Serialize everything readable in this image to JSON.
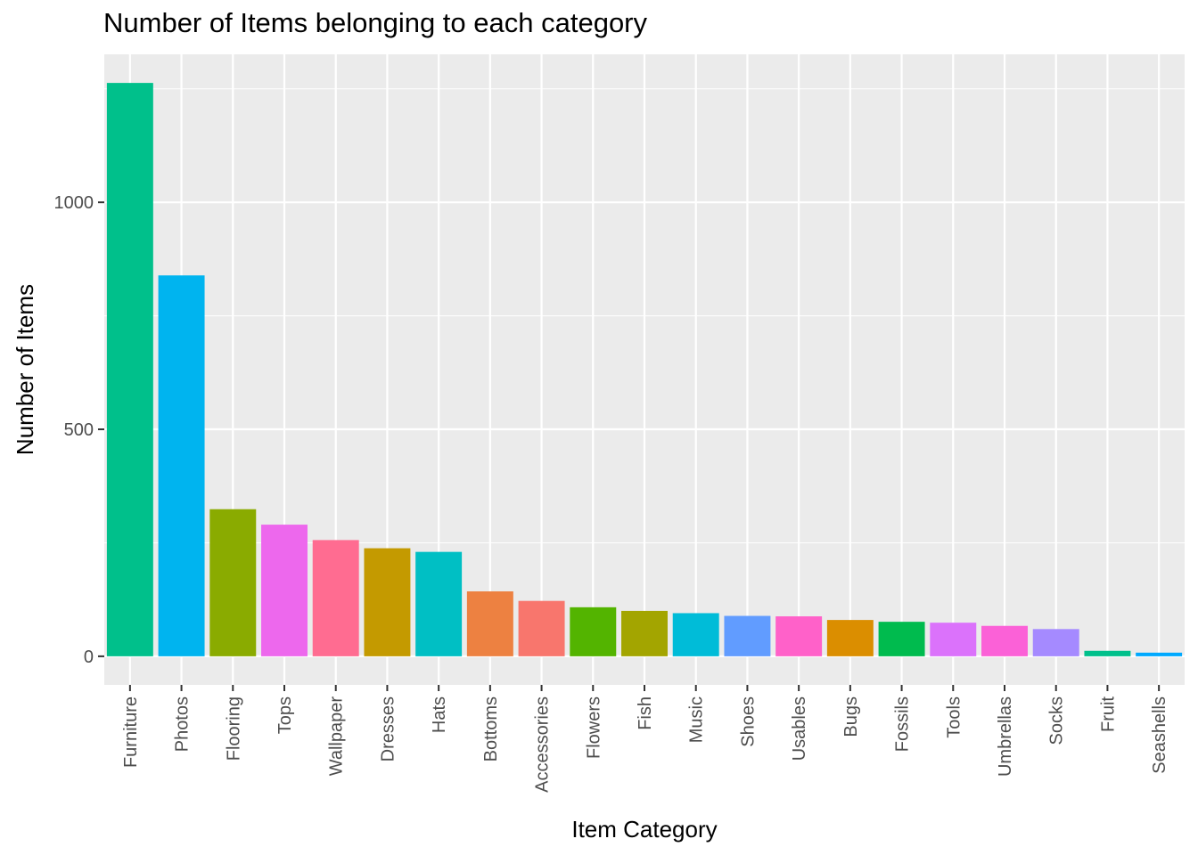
{
  "chart_data": {
    "type": "bar",
    "title": "Number of Items belonging to each category",
    "xlabel": "Item Category",
    "ylabel": "Number of Items",
    "categories": [
      "Furniture",
      "Photos",
      "Flooring",
      "Tops",
      "Wallpaper",
      "Dresses",
      "Hats",
      "Bottoms",
      "Accessories",
      "Flowers",
      "Fish",
      "Music",
      "Shoes",
      "Usables",
      "Bugs",
      "Fossils",
      "Tools",
      "Umbrellas",
      "Socks",
      "Fruit",
      "Seashells"
    ],
    "values": [
      1263,
      839,
      324,
      290,
      256,
      238,
      230,
      143,
      122,
      108,
      100,
      95,
      89,
      88,
      80,
      76,
      74,
      67,
      60,
      12,
      8
    ],
    "colors": [
      "#00C08B",
      "#00B4EF",
      "#8AAB00",
      "#ED68ED",
      "#FF6C91",
      "#C49A00",
      "#00BFC4",
      "#ED8141",
      "#F8766D",
      "#53B400",
      "#A3A500",
      "#00BCD8",
      "#619CFF",
      "#FF61C9",
      "#DB8E00",
      "#00BB4E",
      "#DB72FB",
      "#FB61D7",
      "#A58AFF",
      "#00C08B",
      "#00A9FF"
    ],
    "ylim": [
      -63,
      1326
    ],
    "yticks": [
      0,
      500,
      1000
    ],
    "grid": true,
    "legend": "none",
    "panel_background": "#EBEBEB",
    "grid_color": "#FFFFFF"
  }
}
